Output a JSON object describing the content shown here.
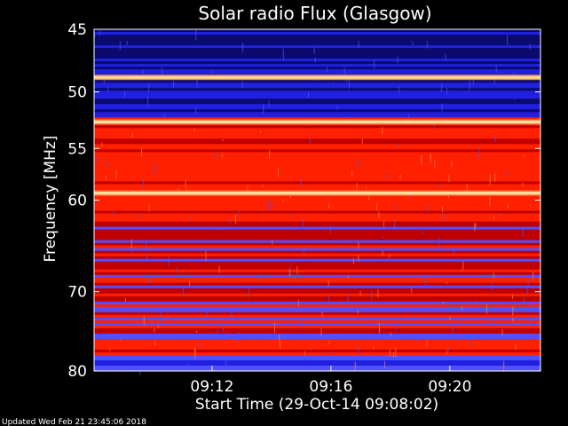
{
  "chart_data": {
    "type": "heatmap",
    "title": "Solar radio Flux (Glasgow)",
    "ylabel": "Frequency [MHz]",
    "xlabel": "Start Time (29-Oct-14 09:08:02)",
    "y_axis": {
      "scale": "log",
      "inverted": true,
      "range": [
        45,
        80
      ],
      "ticks": [
        45,
        50,
        55,
        60,
        70,
        80
      ]
    },
    "x_axis": {
      "ticks": [
        "09:12",
        "09:16",
        "09:20"
      ]
    },
    "colormap": [
      "#0b0b6e",
      "#2020e0",
      "#5050ff",
      "#c00000",
      "#ff2000",
      "#ff8040",
      "#ffe0a0"
    ],
    "bright_bands_mhz": [
      48.8,
      52.6,
      59.3
    ],
    "footer": "Updated Wed Feb 21 23:45:06 2018"
  }
}
